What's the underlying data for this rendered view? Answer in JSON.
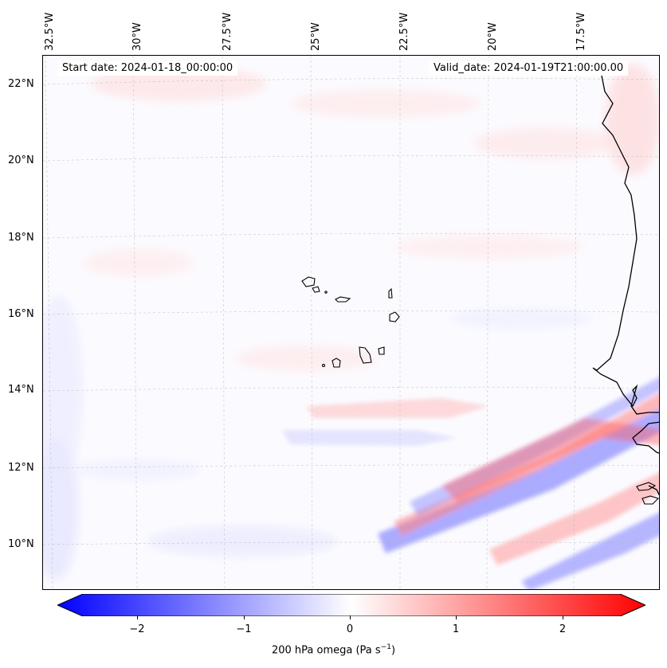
{
  "map": {
    "top_labels": [
      "32.5°W",
      "30°W",
      "27.5°W",
      "25°W",
      "22.5°W",
      "20°W",
      "17.5°W"
    ],
    "left_labels": [
      "22°N",
      "20°N",
      "18°N",
      "16°N",
      "14°N",
      "12°N",
      "10°N"
    ],
    "start_date": "Start date: 2024-01-18_00:00:00",
    "valid_date": "Valid_date: 2024-01-19T21:00:00.00"
  },
  "colorbar": {
    "ticks": [
      "−2",
      "−1",
      "0",
      "1",
      "2"
    ],
    "label_main": "200 hPa omega (Pa s",
    "label_sup": "−1",
    "label_end": ")",
    "min": -2.6,
    "max": 2.6,
    "colors": {
      "low": "#0000ff",
      "mid": "#ffffff",
      "high": "#ff0000"
    }
  }
}
